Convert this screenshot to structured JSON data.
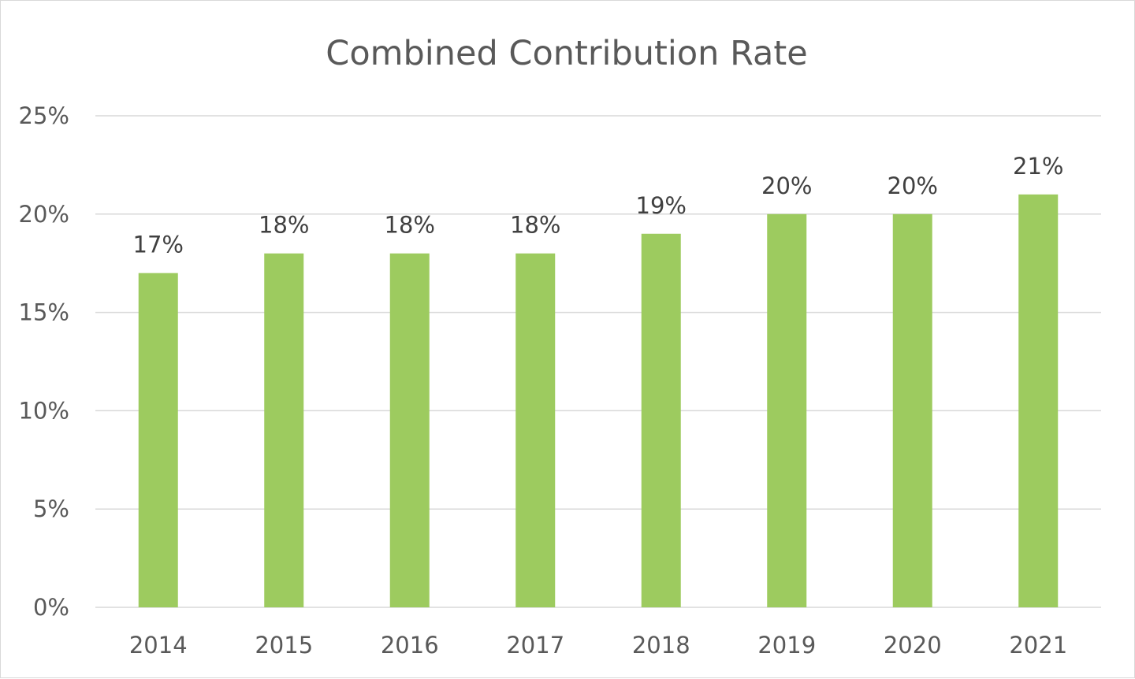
{
  "chart_data": {
    "type": "bar",
    "title": "Combined Contribution Rate",
    "categories": [
      "2014",
      "2015",
      "2016",
      "2017",
      "2018",
      "2019",
      "2020",
      "2021"
    ],
    "series": [
      {
        "values": [
          17,
          18,
          18,
          18,
          19,
          20,
          20,
          21
        ],
        "data_labels": [
          "17%",
          "18%",
          "18%",
          "18%",
          "19%",
          "20%",
          "20%",
          "21%"
        ],
        "color": "#9dcb5f"
      }
    ],
    "y_ticks": [
      {
        "value": 0,
        "label": "0%"
      },
      {
        "value": 5,
        "label": "5%"
      },
      {
        "value": 10,
        "label": "10%"
      },
      {
        "value": 15,
        "label": "15%"
      },
      {
        "value": 20,
        "label": "20%"
      },
      {
        "value": 25,
        "label": "25%"
      }
    ],
    "ylim": [
      0,
      25
    ],
    "xlabel": "",
    "ylabel": "",
    "grid": true,
    "legend": "none",
    "gridline_color": "#d9d9d9",
    "axis_line_color": "#d9d9d9",
    "text_color": "#595959"
  }
}
